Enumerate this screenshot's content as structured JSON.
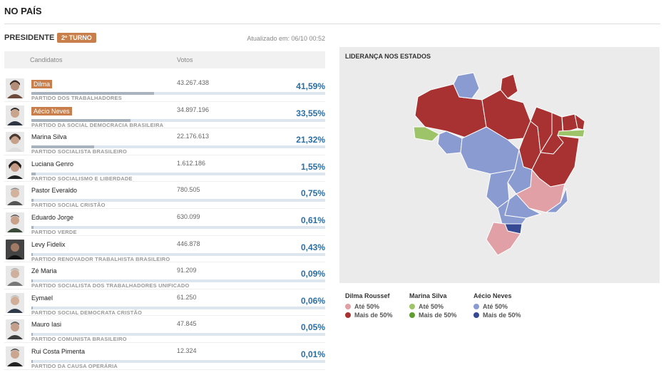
{
  "header": {
    "title": "NO PAÍS"
  },
  "section": {
    "label": "PRESIDENTE",
    "round_badge": "2º TURNO",
    "updated": "Atualizado em: 06/10 00:52"
  },
  "table": {
    "col_candidates": "Candidatos",
    "col_votes": "Votos"
  },
  "candidates": [
    {
      "name": "Dilma",
      "party": "PARTIDO DOS TRABALHADORES",
      "votes": "43.267.438",
      "pct": "41,59%",
      "share": 0.4159,
      "highlight": true
    },
    {
      "name": "Aécio Neves",
      "party": "PARTIDO DA SOCIAL DEMOCRACIA BRASILEIRA",
      "votes": "34.897.196",
      "pct": "33,55%",
      "share": 0.3355,
      "highlight": true
    },
    {
      "name": "Marina Silva",
      "party": "PARTIDO SOCIALISTA BRASILEIRO",
      "votes": "22.176.613",
      "pct": "21,32%",
      "share": 0.2132,
      "highlight": false
    },
    {
      "name": "Luciana Genro",
      "party": "PARTIDO SOCIALISMO E LIBERDADE",
      "votes": "1.612.186",
      "pct": "1,55%",
      "share": 0.0155,
      "highlight": false
    },
    {
      "name": "Pastor Everaldo",
      "party": "PARTIDO SOCIAL CRISTÃO",
      "votes": "780.505",
      "pct": "0,75%",
      "share": 0.0075,
      "highlight": false
    },
    {
      "name": "Eduardo Jorge",
      "party": "PARTIDO VERDE",
      "votes": "630.099",
      "pct": "0,61%",
      "share": 0.0061,
      "highlight": false
    },
    {
      "name": "Levy Fidelix",
      "party": "PARTIDO RENOVADOR TRABALHISTA BRASILEIRO",
      "votes": "446.878",
      "pct": "0,43%",
      "share": 0.0043,
      "highlight": false
    },
    {
      "name": "Zé Maria",
      "party": "PARTIDO SOCIALISTA DOS TRABALHADORES UNIFICADO",
      "votes": "91.209",
      "pct": "0,09%",
      "share": 0.0009,
      "highlight": false
    },
    {
      "name": "Eymael",
      "party": "PARTIDO SOCIAL DEMOCRATA CRISTÃO",
      "votes": "61.250",
      "pct": "0,06%",
      "share": 0.0006,
      "highlight": false
    },
    {
      "name": "Mauro Iasi",
      "party": "PARTIDO COMUNISTA BRASILEIRO",
      "votes": "47.845",
      "pct": "0,05%",
      "share": 0.0005,
      "highlight": false
    },
    {
      "name": "Rui Costa Pimenta",
      "party": "PARTIDO DA CAUSA OPERÁRIA",
      "votes": "12.324",
      "pct": "0,01%",
      "share": 0.0001,
      "highlight": false
    }
  ],
  "map": {
    "title": "LIDERANÇA NOS ESTADOS",
    "colors": {
      "dilma_low": "#e0a0a6",
      "dilma_high": "#a83232",
      "marina_low": "#9ec46a",
      "marina_high": "#5e9e2f",
      "aecio_low": "#8a9bd2",
      "aecio_high": "#354a93"
    }
  },
  "legend": [
    {
      "name": "Dilma Roussef",
      "low_label": "Até 50%",
      "high_label": "Mais de 50%",
      "low_color": "#e0a0a6",
      "high_color": "#a83232"
    },
    {
      "name": "Marina Silva",
      "low_label": "Até 50%",
      "high_label": "Mais de 50%",
      "low_color": "#9ec46a",
      "high_color": "#5e9e2f"
    },
    {
      "name": "Aécio Neves",
      "low_label": "Até 50%",
      "high_label": "Mais de 50%",
      "low_color": "#8a9bd2",
      "high_color": "#354a93"
    }
  ]
}
